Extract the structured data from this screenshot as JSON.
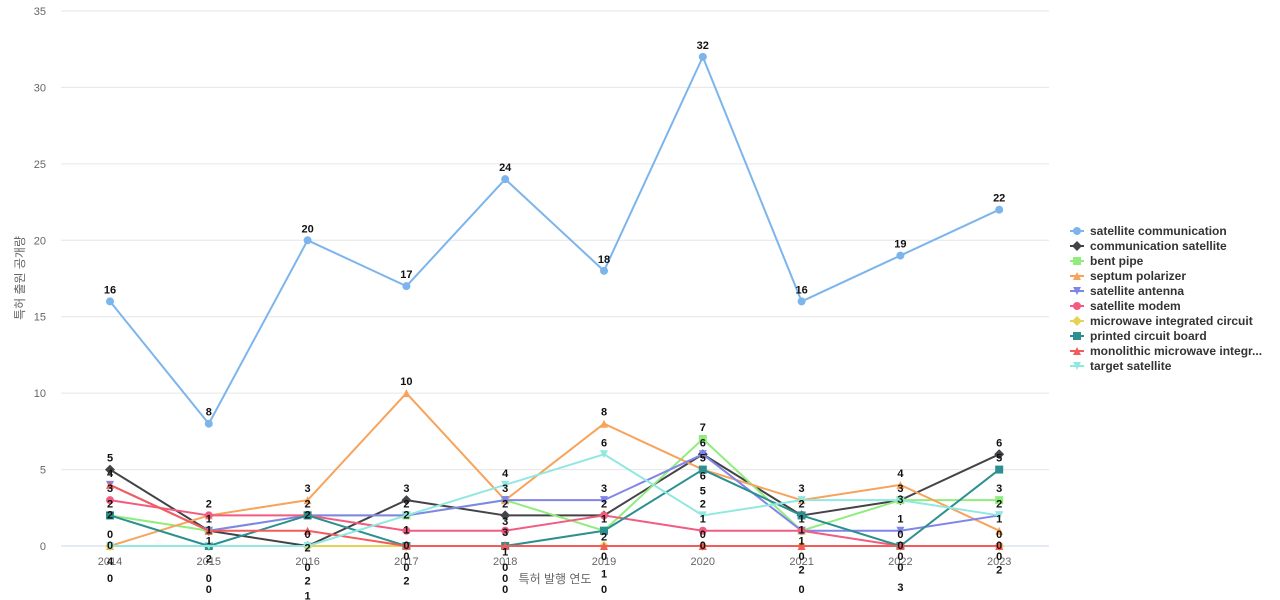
{
  "chart_data": {
    "type": "line",
    "title": "",
    "xlabel": "특허 발행 연도",
    "ylabel": "특허 출원 공개량",
    "ylim": [
      0,
      35
    ],
    "yticks": [
      0,
      5,
      10,
      15,
      20,
      25,
      30,
      35
    ],
    "categories": [
      "2014",
      "2015",
      "2016",
      "2017",
      "2018",
      "2019",
      "2020",
      "2021",
      "2022",
      "2023"
    ],
    "grid": true,
    "legend_position": "right",
    "series": [
      {
        "name": "satellite communication",
        "values": [
          16,
          8,
          20,
          17,
          24,
          18,
          32,
          16,
          19,
          22
        ],
        "color": "#7cb5ec",
        "marker": "circle"
      },
      {
        "name": "communication satellite",
        "values": [
          5,
          1,
          0,
          3,
          2,
          2,
          6,
          2,
          3,
          6
        ],
        "color": "#434348",
        "marker": "diamond"
      },
      {
        "name": "bent pipe",
        "values": [
          2,
          1,
          2,
          2,
          3,
          1,
          7,
          1,
          3,
          3
        ],
        "color": "#90ed7d",
        "marker": "square"
      },
      {
        "name": "septum polarizer",
        "values": [
          0,
          2,
          3,
          10,
          3,
          8,
          5,
          3,
          4,
          1
        ],
        "color": "#f7a35c",
        "marker": "triangle"
      },
      {
        "name": "satellite antenna",
        "values": [
          4,
          1,
          2,
          2,
          3,
          3,
          6,
          1,
          1,
          2
        ],
        "color": "#8085e9",
        "marker": "triangle-down"
      },
      {
        "name": "satellite modem",
        "values": [
          3,
          2,
          2,
          1,
          1,
          2,
          1,
          1,
          0,
          0
        ],
        "color": "#f15c80",
        "marker": "circle"
      },
      {
        "name": "microwave integrated circuit",
        "values": [
          0,
          0,
          0,
          0,
          0,
          0,
          0,
          0,
          0,
          0
        ],
        "color": "#e4d354",
        "marker": "diamond"
      },
      {
        "name": "printed circuit board",
        "values": [
          2,
          0,
          2,
          0,
          0,
          1,
          5,
          2,
          0,
          5
        ],
        "color": "#2b908f",
        "marker": "square"
      },
      {
        "name": "monolithic microwave integr...",
        "values": [
          4,
          1,
          1,
          0,
          0,
          0,
          0,
          0,
          0,
          0
        ],
        "color": "#f45b5b",
        "marker": "triangle"
      },
      {
        "name": "target satellite",
        "values": [
          0,
          0,
          0,
          2,
          4,
          6,
          2,
          3,
          3,
          2
        ],
        "color": "#91e8e1",
        "marker": "triangle-down"
      }
    ]
  }
}
